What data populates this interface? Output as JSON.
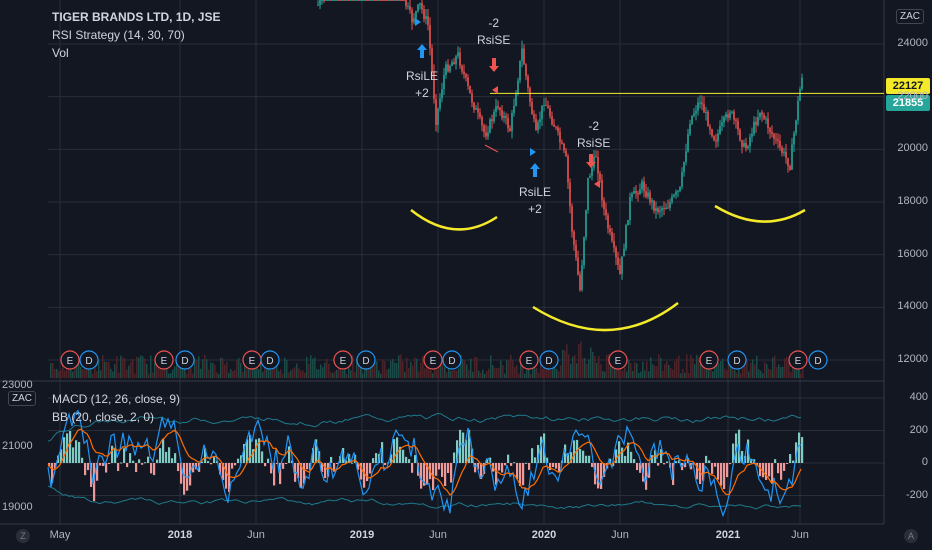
{
  "legend": {
    "title": "TIGER BRANDS LTD, 1D, JSE",
    "indicator": "RSI Strategy (14, 30, 70)",
    "volume": "Vol"
  },
  "lower_legend": {
    "macd": "MACD (12, 26, close, 9)",
    "bb": "BB (20, close, 2, 0)"
  },
  "currency": "ZAC",
  "price_tags": {
    "high": "22127",
    "last": "21855",
    "high_color": "#f5ea2a",
    "last_color": "#26a69a"
  },
  "annotations": [
    {
      "name": "rsile-1",
      "label": "RsiLE",
      "qty": "+2"
    },
    {
      "name": "rsise-1",
      "label": "RsiSE",
      "qty": "-2"
    },
    {
      "name": "rsile-2",
      "label": "RsiLE",
      "qty": "+2"
    },
    {
      "name": "rsise-2",
      "label": "RsiSE",
      "qty": "-2"
    }
  ],
  "events": [
    "E",
    "D",
    "E",
    "D",
    "E",
    "D",
    "E",
    "D",
    "E",
    "D",
    "E",
    "D",
    "E",
    "E",
    "D",
    "E",
    "D"
  ],
  "corner": {
    "left": "Z",
    "right": "A"
  },
  "colors": {
    "up": "#26a69a",
    "down": "#ef5350",
    "resistance": "#f5ea2a",
    "pattern": "#f5ea2a",
    "macd": "#2196f3",
    "signal": "#ff6d00",
    "hist_up": "#80cbc4",
    "hist_down": "#ef9a9a",
    "bb": "#1f7a8c",
    "buy_arrow": "#2196f3",
    "sell_arrow": "#ef5350"
  },
  "chart_data": [
    {
      "type": "candlestick",
      "title": "TIGER BRANDS LTD, 1D, JSE",
      "ylabel": "ZAC",
      "ylim": [
        11300,
        25400
      ],
      "y_ticks": [
        12000,
        14000,
        16000,
        18000,
        20000,
        22000,
        24000
      ],
      "x_ticks": [
        "May",
        "2018",
        "Jun",
        "2019",
        "Jun",
        "2020",
        "Jun",
        "2021",
        "Jun"
      ],
      "resistance_level": 22127,
      "last_price": 21855,
      "approx_path": [
        {
          "x": "2019-03",
          "close": 24500
        },
        {
          "x": "2019-05",
          "close": 23000
        },
        {
          "x": "2019-06",
          "close": 21000
        },
        {
          "x": "2019-08",
          "close": 23000
        },
        {
          "x": "2019-10",
          "close": 20500
        },
        {
          "x": "2019-12",
          "close": 23500
        },
        {
          "x": "2020-01",
          "close": 21000
        },
        {
          "x": "2020-02",
          "close": 20500
        },
        {
          "x": "2020-03",
          "close": 15000
        },
        {
          "x": "2020-04",
          "close": 19000
        },
        {
          "x": "2020-05",
          "close": 16000
        },
        {
          "x": "2020-06",
          "close": 17500
        },
        {
          "x": "2020-08",
          "close": 18500
        },
        {
          "x": "2020-10",
          "close": 21500
        },
        {
          "x": "2020-12",
          "close": 21000
        },
        {
          "x": "2021-03",
          "close": 21500
        },
        {
          "x": "2021-05",
          "close": 20000
        },
        {
          "x": "2021-06",
          "close": 21855
        }
      ]
    },
    {
      "type": "line",
      "title": "MACD (12, 26, close, 9)",
      "ylim": [
        -330,
        500
      ],
      "y_ticks": [
        -200,
        0,
        200,
        400
      ],
      "left_y_ticks": [
        19000,
        21000,
        23000
      ],
      "series": [
        {
          "name": "MACD",
          "values": []
        },
        {
          "name": "BB",
          "values": []
        }
      ]
    }
  ]
}
